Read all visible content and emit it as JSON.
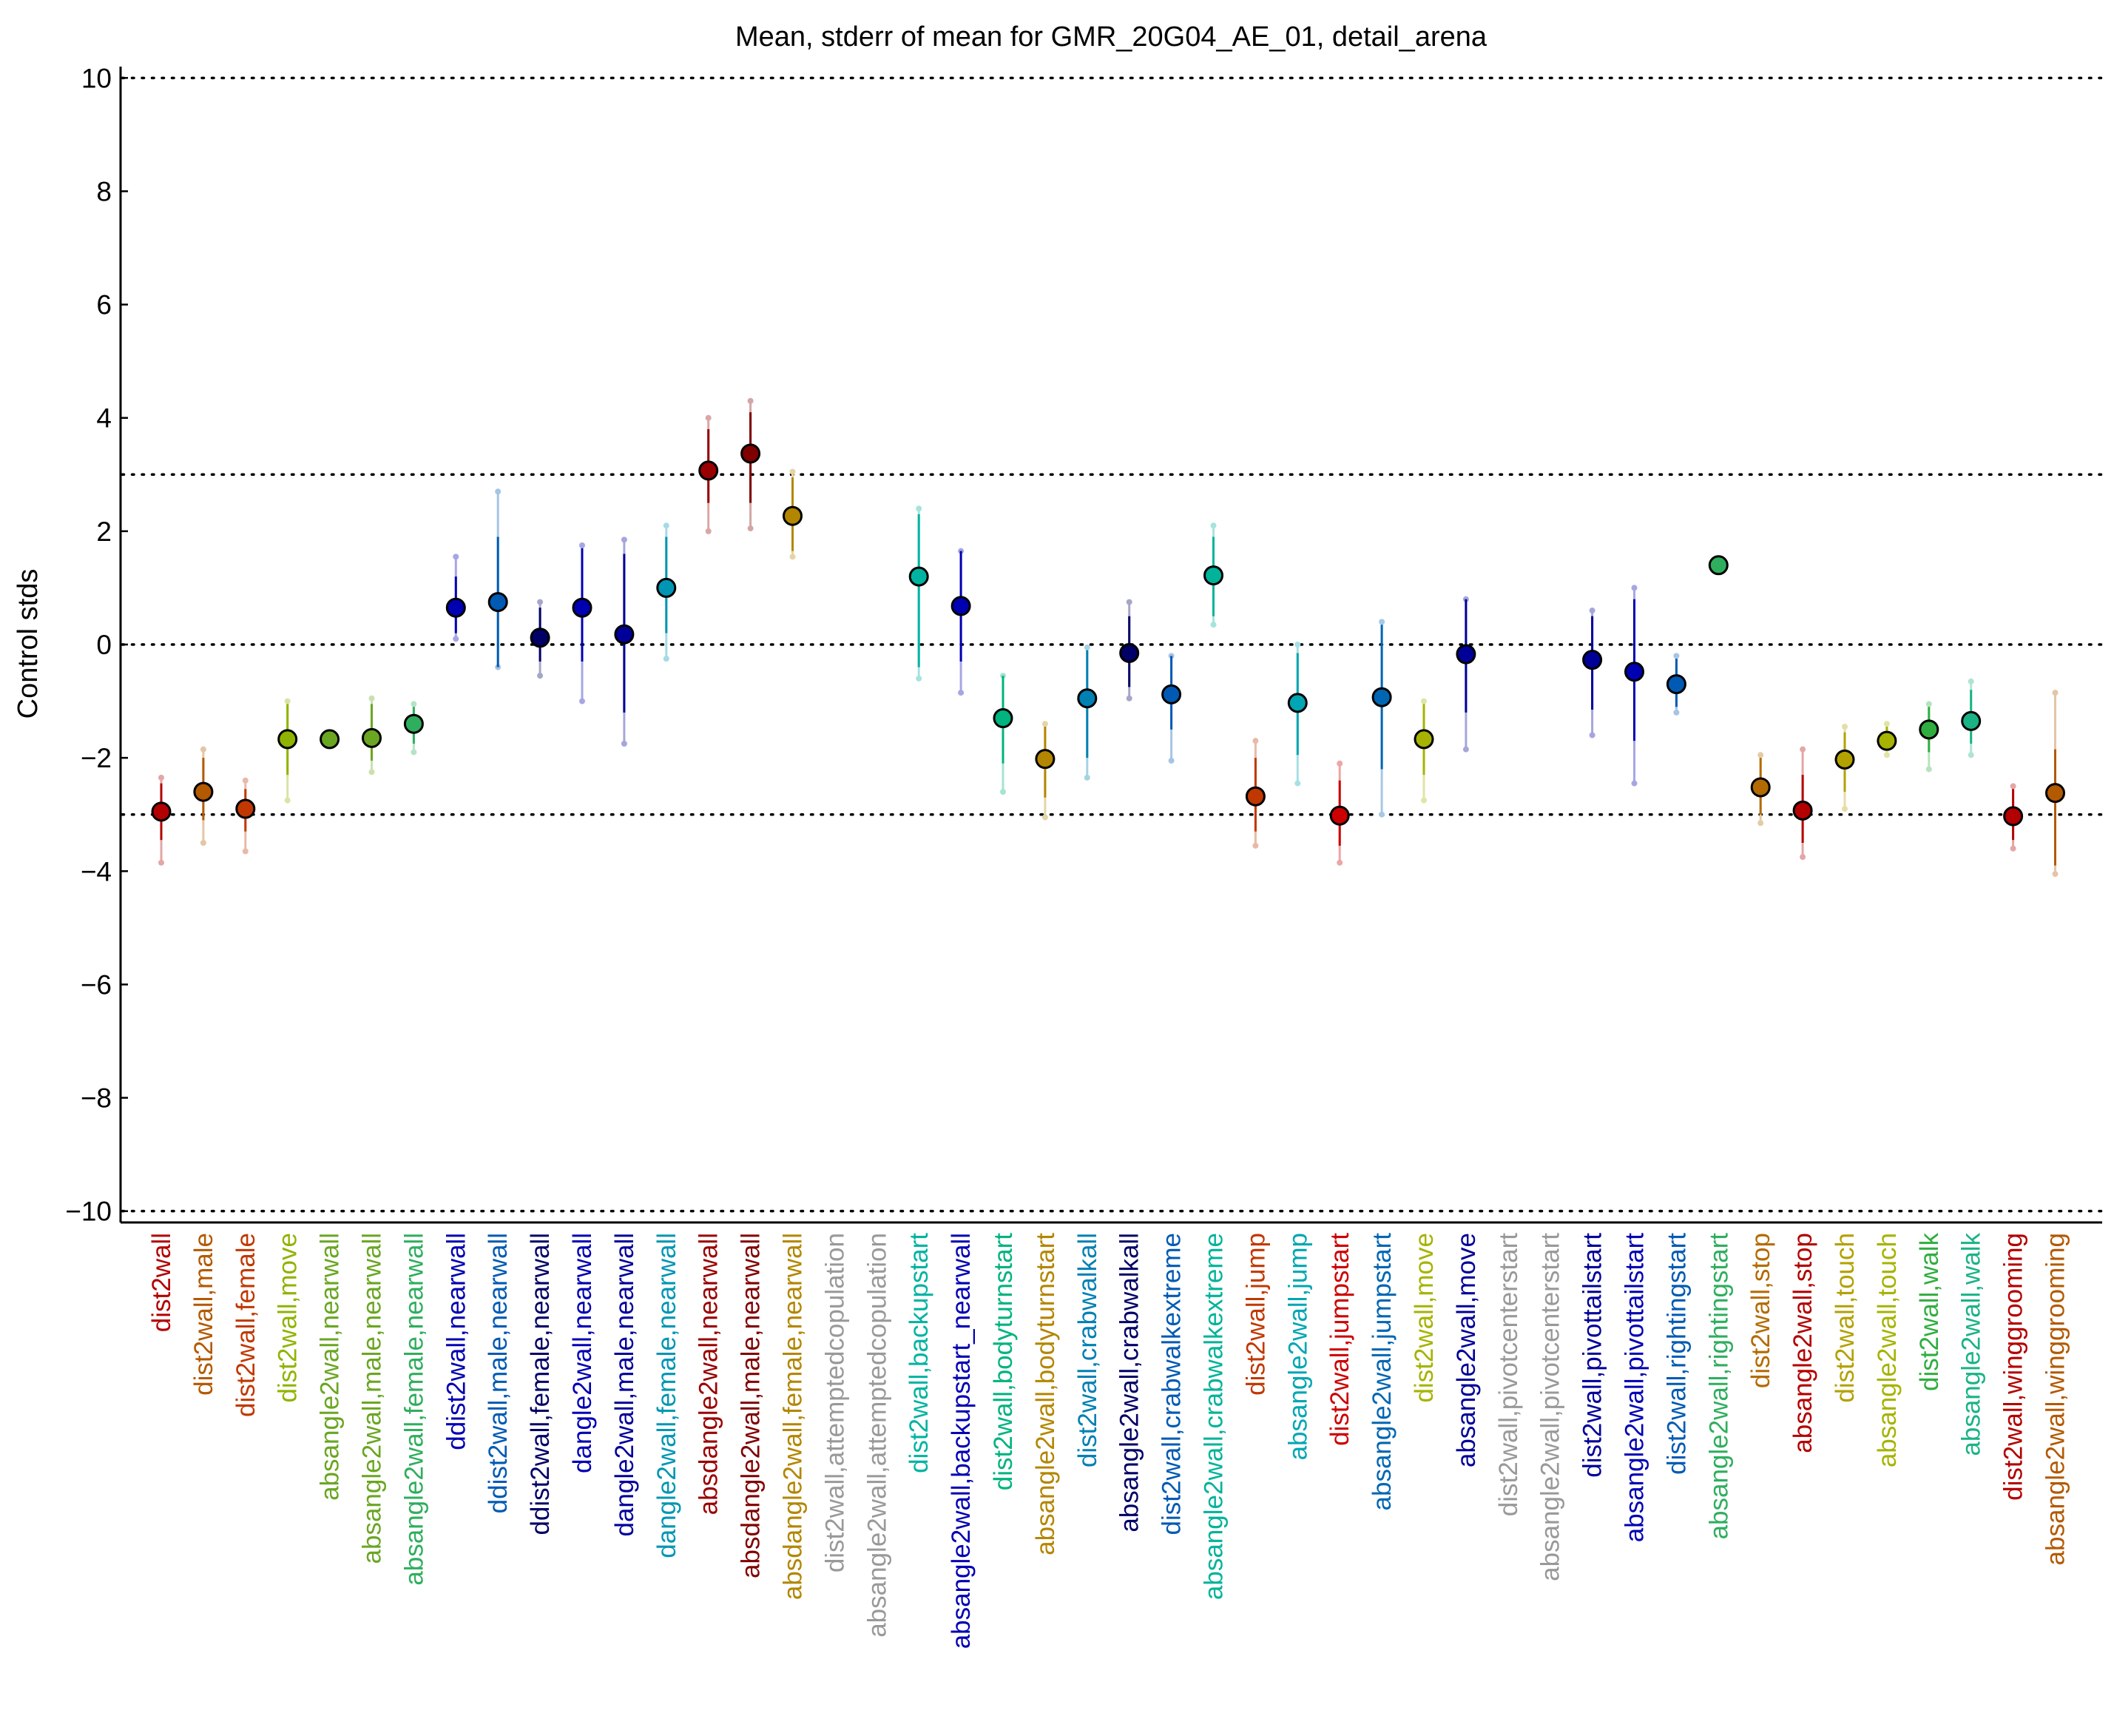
{
  "chart_data": {
    "type": "scatter",
    "title": "Mean, stderr of mean for GMR_20G04_AE_01, detail_arena",
    "xlabel": "",
    "ylabel": "Control stds",
    "ylim": [
      -10.2,
      10.2
    ],
    "yticks": [
      -10,
      -8,
      -6,
      -4,
      -2,
      0,
      2,
      4,
      6,
      8,
      10
    ],
    "ytick_labels": [
      "−10",
      "−8",
      "−6",
      "−4",
      "−2",
      "0",
      "2",
      "4",
      "6",
      "8",
      "10"
    ],
    "reference_lines": [
      -10,
      -3,
      0,
      3,
      10
    ],
    "grid": false,
    "categories": [
      {
        "label": "dist2wall",
        "color": "#b30000",
        "mean": -2.95,
        "se_low": -3.45,
        "se_high": -2.45,
        "ext_low": -3.85,
        "ext_high": -2.35
      },
      {
        "label": "dist2wall,male",
        "color": "#b35900",
        "mean": -2.6,
        "se_low": -3.1,
        "se_high": -2.0,
        "ext_low": -3.5,
        "ext_high": -1.85
      },
      {
        "label": "dist2wall,female",
        "color": "#c03800",
        "mean": -2.9,
        "se_low": -3.3,
        "se_high": -2.55,
        "ext_low": -3.65,
        "ext_high": -2.4
      },
      {
        "label": "dist2wall,move",
        "color": "#8fb300",
        "mean": -1.67,
        "se_low": -2.3,
        "se_high": -1.05,
        "ext_low": -2.75,
        "ext_high": -1.0
      },
      {
        "label": "absangle2wall,nearwall",
        "color": "#6aa622",
        "mean": -1.67,
        "se_low": -1.67,
        "se_high": -1.67,
        "ext_low": -1.67,
        "ext_high": -1.67
      },
      {
        "label": "absangle2wall,male,nearwall",
        "color": "#6aa622",
        "mean": -1.65,
        "se_low": -2.05,
        "se_high": -1.05,
        "ext_low": -2.25,
        "ext_high": -0.95
      },
      {
        "label": "absangle2wall,female,nearwall",
        "color": "#2fae5e",
        "mean": -1.4,
        "se_low": -1.75,
        "se_high": -1.1,
        "ext_low": -1.9,
        "ext_high": -1.05
      },
      {
        "label": "ddist2wall,nearwall",
        "color": "#0000b3",
        "mean": 0.65,
        "se_low": 0.2,
        "se_high": 1.2,
        "ext_low": 0.1,
        "ext_high": 1.55
      },
      {
        "label": "ddist2wall,male,nearwall",
        "color": "#005ab3",
        "mean": 0.75,
        "se_low": -0.4,
        "se_high": 1.9,
        "ext_low": -0.4,
        "ext_high": 2.7
      },
      {
        "label": "ddist2wall,female,nearwall",
        "color": "#000066",
        "mean": 0.12,
        "se_low": -0.3,
        "se_high": 0.65,
        "ext_low": -0.55,
        "ext_high": 0.75
      },
      {
        "label": "dangle2wall,nearwall",
        "color": "#0000b3",
        "mean": 0.65,
        "se_low": -0.3,
        "se_high": 1.7,
        "ext_low": -1.0,
        "ext_high": 1.75
      },
      {
        "label": "dangle2wall,male,nearwall",
        "color": "#000099",
        "mean": 0.18,
        "se_low": -1.2,
        "se_high": 1.6,
        "ext_low": -1.75,
        "ext_high": 1.85
      },
      {
        "label": "dangle2wall,female,nearwall",
        "color": "#0096b3",
        "mean": 1.0,
        "se_low": 0.2,
        "se_high": 1.9,
        "ext_low": -0.25,
        "ext_high": 2.1
      },
      {
        "label": "absdangle2wall,nearwall",
        "color": "#990000",
        "mean": 3.07,
        "se_low": 2.5,
        "se_high": 3.8,
        "ext_low": 2.0,
        "ext_high": 4.0
      },
      {
        "label": "absdangle2wall,male,nearwall",
        "color": "#800000",
        "mean": 3.37,
        "se_low": 2.5,
        "se_high": 4.1,
        "ext_low": 2.05,
        "ext_high": 4.3
      },
      {
        "label": "absdangle2wall,female,nearwall",
        "color": "#b38600",
        "mean": 2.27,
        "se_low": 1.65,
        "se_high": 2.95,
        "ext_low": 1.55,
        "ext_high": 3.05
      },
      {
        "label": "dist2wall,attemptedcopulation",
        "color": "#999999",
        "mean": null
      },
      {
        "label": "absangle2wall,attemptedcopulation",
        "color": "#999999",
        "mean": null
      },
      {
        "label": "dist2wall,backupstart",
        "color": "#00b3a1",
        "mean": 1.2,
        "se_low": -0.4,
        "se_high": 2.3,
        "ext_low": -0.6,
        "ext_high": 2.4
      },
      {
        "label": "absangle2wall,backupstart_nearwall",
        "color": "#0000b3",
        "mean": 0.68,
        "se_low": -0.3,
        "se_high": 1.65,
        "ext_low": -0.85,
        "ext_high": 1.65
      },
      {
        "label": "dist2wall,bodyturnstart",
        "color": "#00b37f",
        "mean": -1.3,
        "se_low": -2.1,
        "se_high": -0.55,
        "ext_low": -2.6,
        "ext_high": -0.55
      },
      {
        "label": "absangle2wall,bodyturnstart",
        "color": "#b38600",
        "mean": -2.02,
        "se_low": -2.7,
        "se_high": -1.45,
        "ext_low": -3.05,
        "ext_high": -1.4
      },
      {
        "label": "dist2wall,crabwalkall",
        "color": "#0080b3",
        "mean": -0.95,
        "se_low": -2.0,
        "se_high": -0.1,
        "ext_low": -2.35,
        "ext_high": -0.05
      },
      {
        "label": "absangle2wall,crabwalkall",
        "color": "#000066",
        "mean": -0.15,
        "se_low": -0.75,
        "se_high": 0.5,
        "ext_low": -0.95,
        "ext_high": 0.75
      },
      {
        "label": "dist2wall,crabwalkextreme",
        "color": "#005ab3",
        "mean": -0.88,
        "se_low": -1.5,
        "se_high": -0.2,
        "ext_low": -2.05,
        "ext_high": -0.2
      },
      {
        "label": "absangle2wall,crabwalkextreme",
        "color": "#00b39a",
        "mean": 1.22,
        "se_low": 0.5,
        "se_high": 1.9,
        "ext_low": 0.35,
        "ext_high": 2.1
      },
      {
        "label": "dist2wall,jump",
        "color": "#c03800",
        "mean": -2.68,
        "se_low": -3.3,
        "se_high": -2.0,
        "ext_low": -3.55,
        "ext_high": -1.7
      },
      {
        "label": "absangle2wall,jump",
        "color": "#00a6b3",
        "mean": -1.03,
        "se_low": -1.95,
        "se_high": -0.15,
        "ext_low": -2.45,
        "ext_high": 0.0
      },
      {
        "label": "dist2wall,jumpstart",
        "color": "#cc0000",
        "mean": -3.02,
        "se_low": -3.55,
        "se_high": -2.4,
        "ext_low": -3.85,
        "ext_high": -2.1
      },
      {
        "label": "absangle2wall,jumpstart",
        "color": "#0066b3",
        "mean": -0.93,
        "se_low": -2.2,
        "se_high": 0.35,
        "ext_low": -3.0,
        "ext_high": 0.4
      },
      {
        "label": "dist2wall,move",
        "color": "#a6b300",
        "mean": -1.67,
        "se_low": -2.3,
        "se_high": -1.05,
        "ext_low": -2.75,
        "ext_high": -1.0
      },
      {
        "label": "absangle2wall,move",
        "color": "#000099",
        "mean": -0.17,
        "se_low": -1.2,
        "se_high": 0.8,
        "ext_low": -1.85,
        "ext_high": 0.8
      },
      {
        "label": "dist2wall,pivotcenterstart",
        "color": "#999999",
        "mean": null
      },
      {
        "label": "absangle2wall,pivotcenterstart",
        "color": "#999999",
        "mean": null
      },
      {
        "label": "dist2wall,pivottailstart",
        "color": "#000099",
        "mean": -0.27,
        "se_low": -1.15,
        "se_high": 0.5,
        "ext_low": -1.6,
        "ext_high": 0.6
      },
      {
        "label": "absangle2wall,pivottailstart",
        "color": "#0000b3",
        "mean": -0.48,
        "se_low": -1.7,
        "se_high": 0.8,
        "ext_low": -2.45,
        "ext_high": 1.0
      },
      {
        "label": "dist2wall,rightingstart",
        "color": "#005ab3",
        "mean": -0.7,
        "se_low": -1.1,
        "se_high": -0.25,
        "ext_low": -1.2,
        "ext_high": -0.2
      },
      {
        "label": "absangle2wall,rightingstart",
        "color": "#2fae5e",
        "mean": 1.4,
        "se_low": 1.4,
        "se_high": 1.4,
        "ext_low": 1.4,
        "ext_high": 1.4
      },
      {
        "label": "dist2wall,stop",
        "color": "#b36b00",
        "mean": -2.52,
        "se_low": -3.0,
        "se_high": -2.0,
        "ext_low": -3.15,
        "ext_high": -1.95
      },
      {
        "label": "absangle2wall,stop",
        "color": "#b30000",
        "mean": -2.93,
        "se_low": -3.5,
        "se_high": -2.3,
        "ext_low": -3.75,
        "ext_high": -1.85
      },
      {
        "label": "dist2wall,touch",
        "color": "#b3a100",
        "mean": -2.03,
        "se_low": -2.6,
        "se_high": -1.55,
        "ext_low": -2.9,
        "ext_high": -1.45
      },
      {
        "label": "absangle2wall,touch",
        "color": "#a6b300",
        "mean": -1.7,
        "se_low": -1.85,
        "se_high": -1.45,
        "ext_low": -1.95,
        "ext_high": -1.4
      },
      {
        "label": "dist2wall,walk",
        "color": "#2fae3f",
        "mean": -1.5,
        "se_low": -1.9,
        "se_high": -1.1,
        "ext_low": -2.2,
        "ext_high": -1.05
      },
      {
        "label": "absangle2wall,walk",
        "color": "#1ab386",
        "mean": -1.35,
        "se_low": -1.75,
        "se_high": -0.8,
        "ext_low": -1.95,
        "ext_high": -0.65
      },
      {
        "label": "dist2wall,winggrooming",
        "color": "#b30000",
        "mean": -3.03,
        "se_low": -3.45,
        "se_high": -2.55,
        "ext_low": -3.6,
        "ext_high": -2.5
      },
      {
        "label": "absangle2wall,winggrooming",
        "color": "#b35900",
        "mean": -2.62,
        "se_low": -3.9,
        "se_high": -1.85,
        "ext_low": -4.05,
        "ext_high": -0.85
      }
    ]
  }
}
